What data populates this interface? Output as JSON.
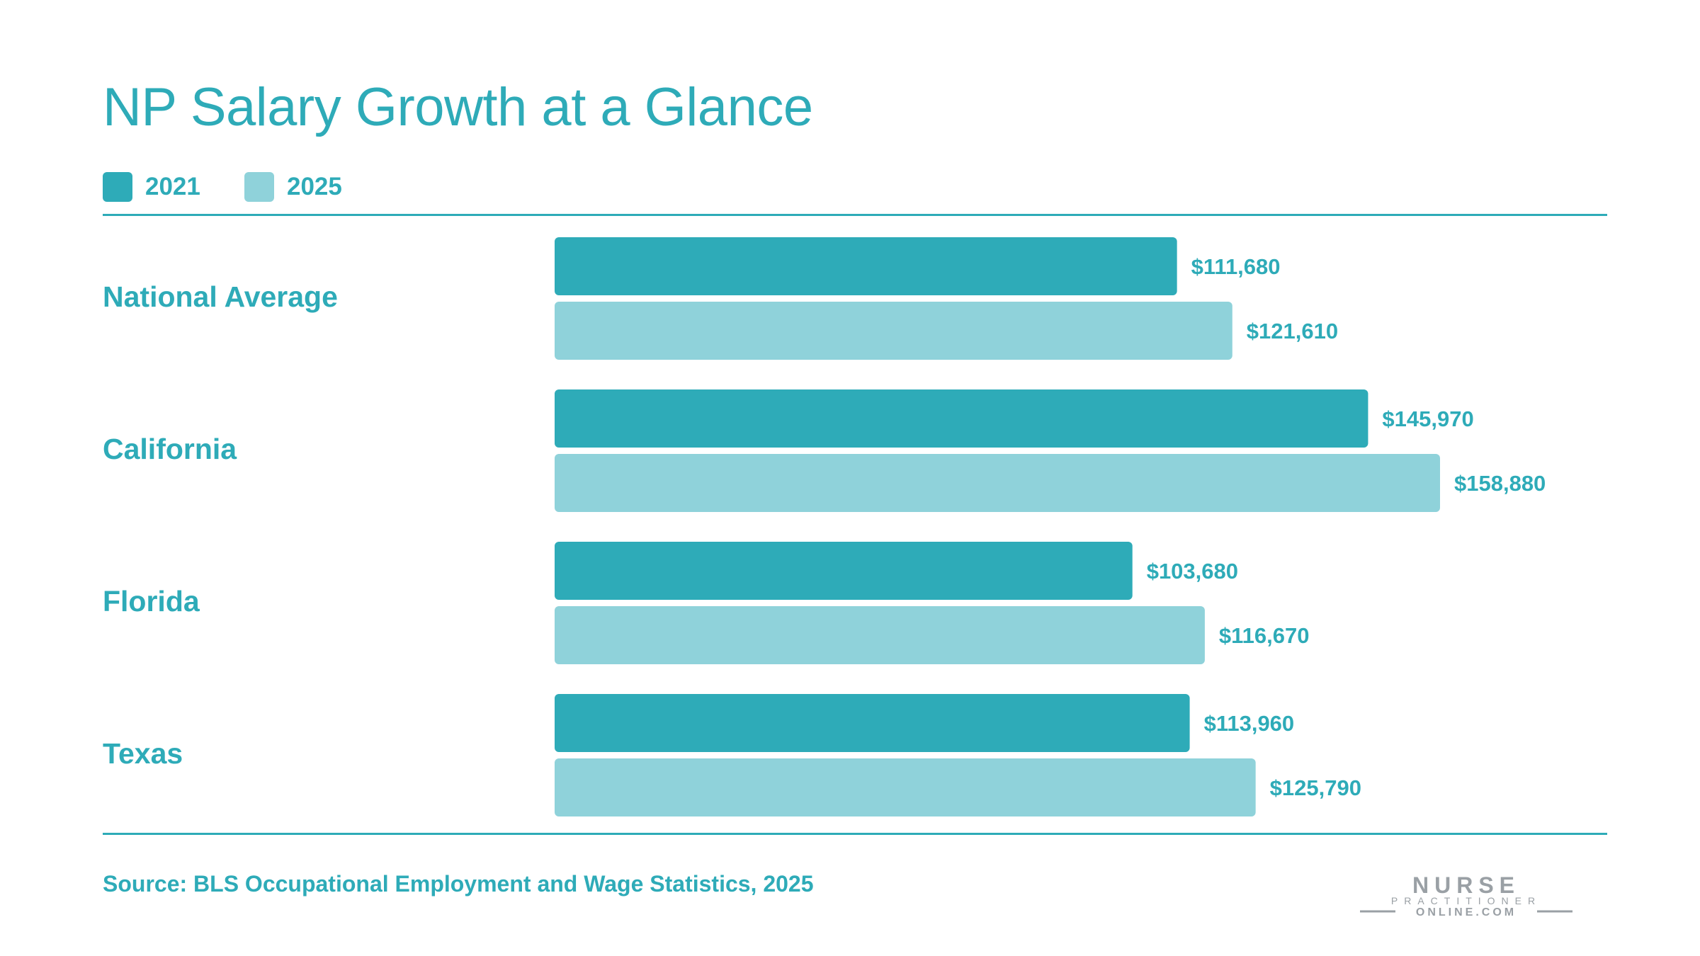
{
  "colors": {
    "accent": "#2EABB8",
    "series_2021": "#2EABB8",
    "series_2025": "#8FD2DA",
    "logo": "#9AA0A5"
  },
  "chart_data": {
    "type": "bar",
    "orientation": "horizontal",
    "title": "NP Salary Growth at a Glance",
    "categories": [
      "National Average",
      "California",
      "Florida",
      "Texas"
    ],
    "series": [
      {
        "name": "2021",
        "values": [
          111680,
          145970,
          103680,
          113960
        ],
        "labels": [
          "$111,680",
          "$145,970",
          "$103,680",
          "$113,960"
        ]
      },
      {
        "name": "2025",
        "values": [
          121610,
          158880,
          116670,
          125790
        ],
        "labels": [
          "$121,610",
          "$158,880",
          "$116,670",
          "$125,790"
        ]
      }
    ],
    "legend_placement": "top-left",
    "grid": false
  },
  "footer": {
    "source": "Source: BLS Occupational Employment and Wage Statistics, 2025"
  },
  "logo": {
    "line1": "NURSE",
    "line2": "PRACTITIONER",
    "line3": "ONLINE.COM"
  }
}
